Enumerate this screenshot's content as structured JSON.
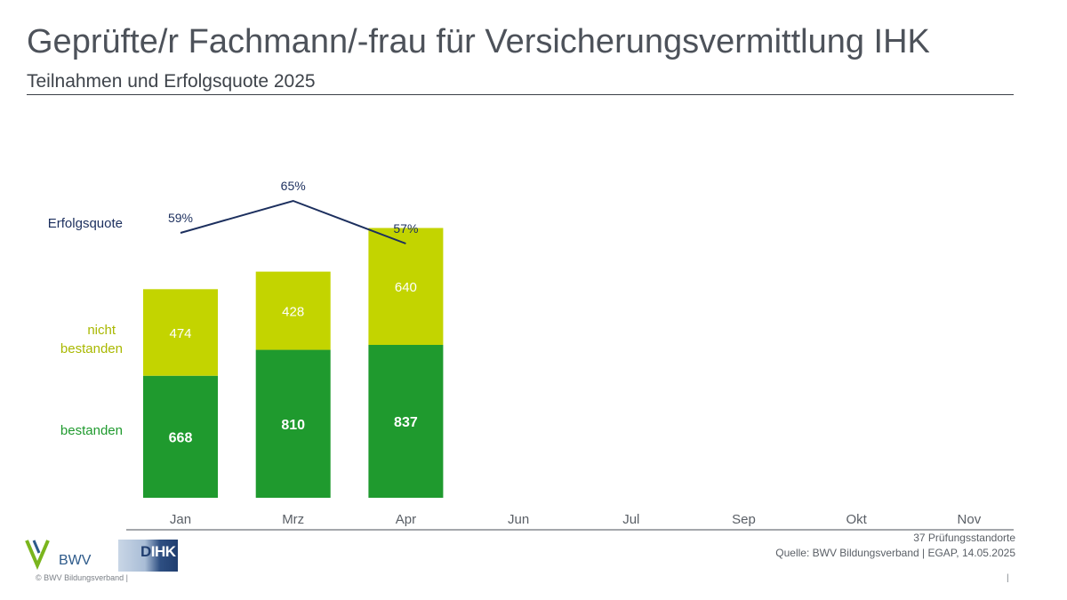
{
  "header": {
    "title": "Geprüfte/r Fachmann/-frau für Versicherungsvermittlung IHK",
    "subtitle": "Teilnahmen und Erfolgsquote 2025"
  },
  "chart_data": {
    "type": "bar",
    "stacked": true,
    "categories": [
      "Jan",
      "Mrz",
      "Apr",
      "Jun",
      "Jul",
      "Sep",
      "Okt",
      "Nov"
    ],
    "series": [
      {
        "name": "bestanden",
        "values": [
          668,
          810,
          837,
          null,
          null,
          null,
          null,
          null
        ],
        "color": "#1f9a2e"
      },
      {
        "name": "nicht bestanden",
        "values": [
          474,
          428,
          640,
          null,
          null,
          null,
          null,
          null
        ],
        "color": "#c3d400"
      }
    ],
    "line": {
      "name": "Erfolgsquote",
      "values": [
        59,
        65,
        57,
        null,
        null,
        null,
        null,
        null
      ],
      "labels": [
        "59%",
        "65%",
        "57%"
      ],
      "color": "#1c2f5e"
    },
    "legend_labels": {
      "line": "Erfolgsquote",
      "nicht_line1": "nicht",
      "nicht_line2": "bestanden",
      "bestanden": "bestanden"
    },
    "legend_placement": "left",
    "ylim": [
      0,
      1700
    ],
    "grid": false
  },
  "footer": {
    "note1": "37 Prüfungsstandorte",
    "note2": "Quelle: BWV Bildungsverband | EGAP, 14.05.2025",
    "copyright": "© BWV Bildungsverband |",
    "page": "|"
  },
  "logos": {
    "bwv": "BWV",
    "dihk_d": "D",
    "dihk_ihk": "IHK"
  },
  "colors": {
    "bestanden": "#1f9a2e",
    "nicht_bestanden": "#c3d400",
    "line": "#1c2f5e",
    "axis": "#4a4f57"
  }
}
